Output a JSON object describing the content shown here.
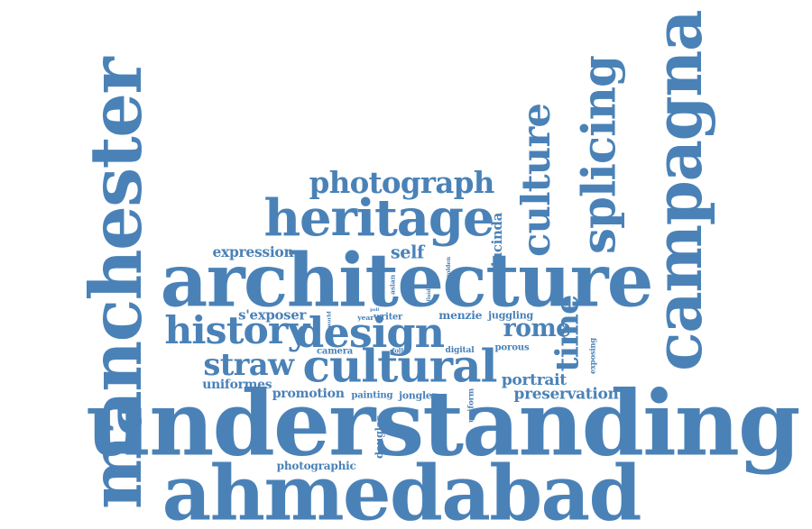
{
  "word_color": "#4a82b7",
  "words": [
    {
      "text": "understanding",
      "size": 92,
      "vertical": false
    },
    {
      "text": "architecture",
      "size": 74,
      "vertical": false
    },
    {
      "text": "ahmedabad",
      "size": 62,
      "vertical": false
    },
    {
      "text": "manchester",
      "size": 74,
      "vertical": true
    },
    {
      "text": "campagna",
      "size": 66,
      "vertical": true
    },
    {
      "text": "heritage",
      "size": 50,
      "vertical": false
    },
    {
      "text": "history",
      "size": 40,
      "vertical": false
    },
    {
      "text": "design",
      "size": 40,
      "vertical": false
    },
    {
      "text": "cultural",
      "size": 40,
      "vertical": false
    },
    {
      "text": "splicing",
      "size": 46,
      "vertical": true
    },
    {
      "text": "culture",
      "size": 36,
      "vertical": true
    },
    {
      "text": "photograph",
      "size": 32,
      "vertical": false
    },
    {
      "text": "rome",
      "size": 30,
      "vertical": false
    },
    {
      "text": "straw",
      "size": 30,
      "vertical": false
    },
    {
      "text": "time",
      "size": 26,
      "vertical": true
    },
    {
      "text": "expression",
      "size": 15,
      "vertical": false
    },
    {
      "text": "self",
      "size": 17,
      "vertical": false
    },
    {
      "text": "lucinda",
      "size": 12,
      "vertical": true
    },
    {
      "text": "golden",
      "size": 8,
      "vertical": true
    },
    {
      "text": "asian",
      "size": 8,
      "vertical": true
    },
    {
      "text": "fluid",
      "size": 7,
      "vertical": true
    },
    {
      "text": "poll",
      "size": 7,
      "vertical": false
    },
    {
      "text": "s'exposer",
      "size": 13,
      "vertical": false
    },
    {
      "text": "world",
      "size": 7,
      "vertical": true
    },
    {
      "text": "year",
      "size": 8,
      "vertical": false
    },
    {
      "text": "writer",
      "size": 11,
      "vertical": false
    },
    {
      "text": "menzie",
      "size": 13,
      "vertical": false
    },
    {
      "text": "juggling",
      "size": 12,
      "vertical": false
    },
    {
      "text": "camera",
      "size": 11,
      "vertical": false
    },
    {
      "text": "follet",
      "size": 8,
      "vertical": false
    },
    {
      "text": "digital",
      "size": 10,
      "vertical": false
    },
    {
      "text": "porous",
      "size": 11,
      "vertical": false
    },
    {
      "text": "exposing",
      "size": 12,
      "vertical": true
    },
    {
      "text": "portrait",
      "size": 17,
      "vertical": false
    },
    {
      "text": "uniformes",
      "size": 14,
      "vertical": false
    },
    {
      "text": "promotion",
      "size": 14,
      "vertical": false
    },
    {
      "text": "painting",
      "size": 12,
      "vertical": false
    },
    {
      "text": "jongler",
      "size": 12,
      "vertical": false
    },
    {
      "text": "preservation",
      "size": 16,
      "vertical": false
    },
    {
      "text": "uniform",
      "size": 10,
      "vertical": true
    },
    {
      "text": "douglas",
      "size": 12,
      "vertical": true
    },
    {
      "text": "photographic",
      "size": 12,
      "vertical": false
    }
  ]
}
